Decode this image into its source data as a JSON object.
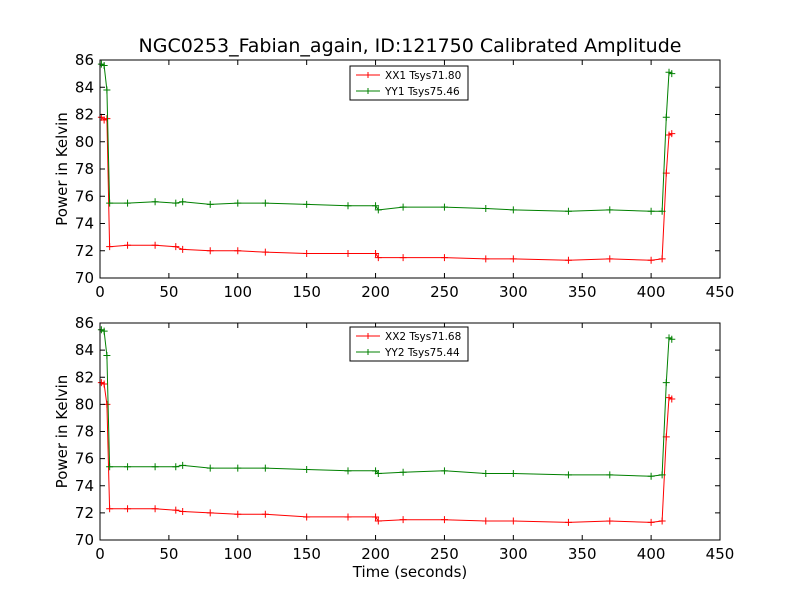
{
  "title": "NGC0253_Fabian_again, ID:121750 Calibrated Amplitude",
  "chart_data": [
    {
      "type": "line",
      "ylabel": "Power in Kelvin",
      "xlabel": "",
      "xlim": [
        0,
        450
      ],
      "ylim": [
        70,
        86
      ],
      "xticks": [
        "0",
        "50",
        "100",
        "150",
        "200",
        "250",
        "300",
        "350",
        "400",
        "450"
      ],
      "yticks": [
        "70",
        "72",
        "74",
        "76",
        "78",
        "80",
        "82",
        "84",
        "86"
      ],
      "legend_position": "top-center",
      "series": [
        {
          "name": "XX1 Tsys71.80",
          "color": "#ff0000",
          "x": [
            1,
            3,
            5,
            7,
            20,
            40,
            55,
            60,
            80,
            100,
            120,
            150,
            180,
            200,
            202,
            220,
            250,
            280,
            300,
            340,
            370,
            400,
            408,
            411,
            413,
            415
          ],
          "y": [
            81.8,
            81.6,
            81.7,
            72.3,
            72.4,
            72.4,
            72.3,
            72.1,
            72.0,
            72.0,
            71.9,
            71.8,
            71.8,
            71.8,
            71.5,
            71.5,
            71.5,
            71.4,
            71.4,
            71.3,
            71.4,
            71.3,
            71.4,
            77.7,
            80.5,
            80.6
          ]
        },
        {
          "name": "YY1 Tsys75.46",
          "color": "#008000",
          "x": [
            1,
            3,
            5,
            7,
            20,
            40,
            55,
            60,
            80,
            100,
            120,
            150,
            180,
            200,
            202,
            220,
            250,
            280,
            300,
            340,
            370,
            400,
            408,
            411,
            413,
            415
          ],
          "y": [
            85.7,
            85.6,
            83.8,
            75.5,
            75.5,
            75.6,
            75.5,
            75.6,
            75.4,
            75.5,
            75.5,
            75.4,
            75.3,
            75.3,
            75.0,
            75.2,
            75.2,
            75.1,
            75.0,
            74.9,
            75.0,
            74.9,
            74.9,
            81.8,
            85.1,
            85.0
          ]
        }
      ]
    },
    {
      "type": "line",
      "ylabel": "Power in Kelvin",
      "xlabel": "Time (seconds)",
      "xlim": [
        0,
        450
      ],
      "ylim": [
        70,
        86
      ],
      "xticks": [
        "0",
        "50",
        "100",
        "150",
        "200",
        "250",
        "300",
        "350",
        "400",
        "450"
      ],
      "yticks": [
        "70",
        "72",
        "74",
        "76",
        "78",
        "80",
        "82",
        "84",
        "86"
      ],
      "legend_position": "top-center",
      "series": [
        {
          "name": "XX2 Tsys71.68",
          "color": "#ff0000",
          "x": [
            1,
            3,
            5,
            7,
            20,
            40,
            55,
            60,
            80,
            100,
            120,
            150,
            180,
            200,
            202,
            220,
            250,
            280,
            300,
            340,
            370,
            400,
            408,
            411,
            413,
            415
          ],
          "y": [
            81.6,
            81.5,
            80.0,
            72.3,
            72.3,
            72.3,
            72.2,
            72.1,
            72.0,
            71.9,
            71.9,
            71.7,
            71.7,
            71.7,
            71.4,
            71.5,
            71.5,
            71.4,
            71.4,
            71.3,
            71.4,
            71.3,
            71.4,
            77.6,
            80.5,
            80.4
          ]
        },
        {
          "name": "YY2 Tsys75.44",
          "color": "#008000",
          "x": [
            1,
            3,
            5,
            7,
            20,
            40,
            55,
            60,
            80,
            100,
            120,
            150,
            180,
            200,
            202,
            220,
            250,
            280,
            300,
            340,
            370,
            400,
            408,
            411,
            413,
            415
          ],
          "y": [
            85.5,
            85.4,
            83.6,
            75.4,
            75.4,
            75.4,
            75.4,
            75.5,
            75.3,
            75.3,
            75.3,
            75.2,
            75.1,
            75.1,
            74.9,
            75.0,
            75.1,
            74.9,
            74.9,
            74.8,
            74.8,
            74.7,
            74.8,
            81.6,
            84.9,
            84.8
          ]
        }
      ]
    }
  ]
}
